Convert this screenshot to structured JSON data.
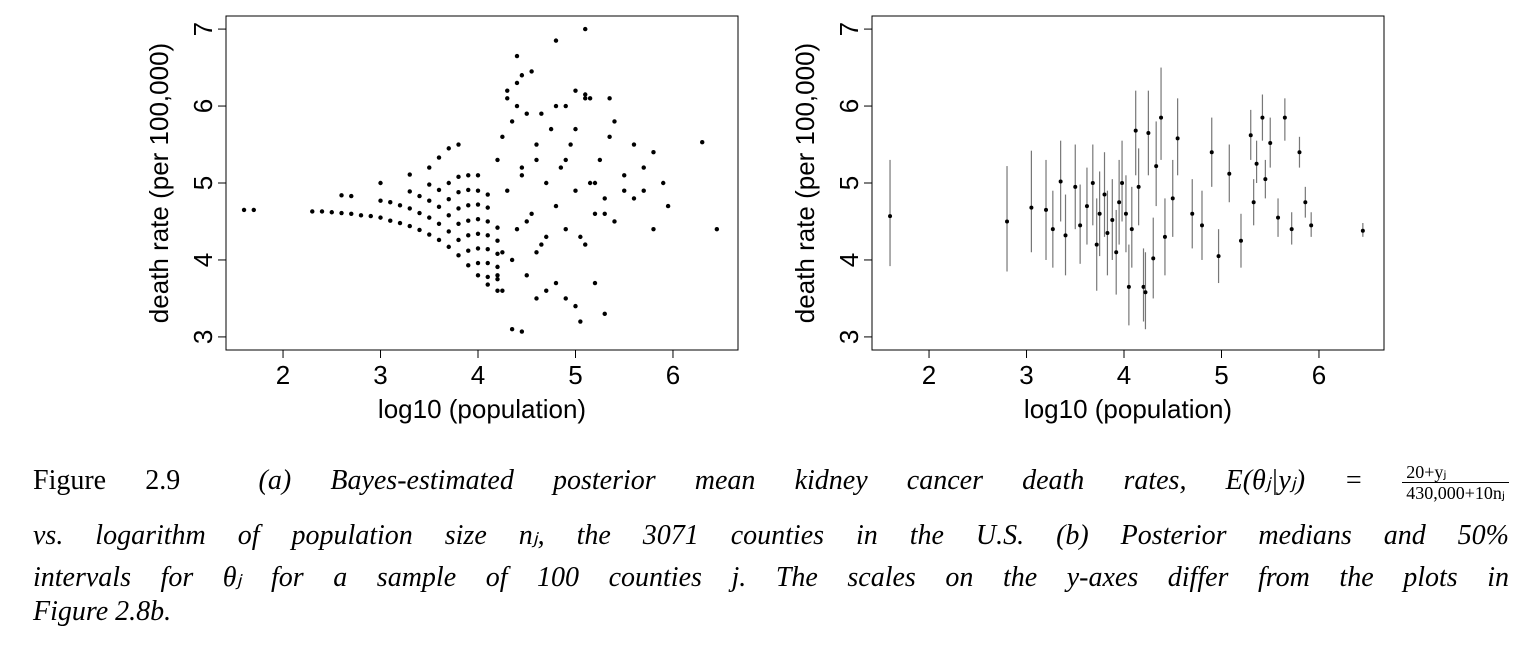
{
  "chart_data": [
    {
      "type": "scatter",
      "xlabel": "log10 (population)",
      "ylabel": "death rate (per 100,000)",
      "xlim": [
        1.415,
        6.667
      ],
      "ylim": [
        2.83,
        7.17
      ],
      "xticks": [
        2,
        3,
        4,
        5,
        6
      ],
      "yticks": [
        3,
        4,
        5,
        6,
        7
      ],
      "color": "#000000",
      "x": [
        1.6,
        1.7,
        2.3,
        2.4,
        2.5,
        2.6,
        2.7,
        2.8,
        2.9,
        3.0,
        3.1,
        3.2,
        3.3,
        3.4,
        3.5,
        3.6,
        3.7,
        3.8,
        3.9,
        4.0,
        4.1,
        4.2,
        2.6,
        2.7,
        3.0,
        3.1,
        3.2,
        3.3,
        3.4,
        3.5,
        3.6,
        3.7,
        3.8,
        3.9,
        4.0,
        4.1,
        4.2,
        3.0,
        3.3,
        3.4,
        3.5,
        3.6,
        3.7,
        3.8,
        3.9,
        4.0,
        4.1,
        4.2,
        3.3,
        3.5,
        3.6,
        3.7,
        3.8,
        3.9,
        4.0,
        4.1,
        4.2,
        3.5,
        3.7,
        3.8,
        3.9,
        4.0,
        4.1,
        4.2,
        3.6,
        3.8,
        3.9,
        4.0,
        4.1,
        4.2,
        3.7,
        3.9,
        4.0,
        4.1,
        4.25,
        3.8,
        4.0,
        4.1,
        4.2,
        4.2,
        4.25,
        4.3,
        4.35,
        4.4,
        4.45,
        4.5,
        4.55,
        4.6,
        4.65,
        4.7,
        4.75,
        4.8,
        4.85,
        4.9,
        4.95,
        5.0,
        5.05,
        5.1,
        5.15,
        5.2,
        5.25,
        5.3,
        5.35,
        5.4,
        5.5,
        5.6,
        5.7,
        5.8,
        5.9,
        5.95,
        4.3,
        4.35,
        4.4,
        4.45,
        4.5,
        4.55,
        4.6,
        4.65,
        4.7,
        4.8,
        4.9,
        5.0,
        5.1,
        5.2,
        5.3,
        5.4,
        5.6,
        5.8,
        4.25,
        4.3,
        4.4,
        4.5,
        4.6,
        4.7,
        4.8,
        4.9,
        5.0,
        5.1,
        5.2,
        5.3,
        5.5,
        5.7,
        4.4,
        4.45,
        4.8,
        5.1,
        5.0,
        5.15,
        5.35,
        6.3,
        6.45,
        4.35,
        4.45,
        4.6,
        4.9,
        5.05
      ],
      "y": [
        4.65,
        4.65,
        4.63,
        4.63,
        4.62,
        4.61,
        4.6,
        4.58,
        4.57,
        4.55,
        4.51,
        4.48,
        4.44,
        4.39,
        4.33,
        4.26,
        4.17,
        4.06,
        3.93,
        3.8,
        3.68,
        3.6,
        4.84,
        4.83,
        4.77,
        4.75,
        4.71,
        4.67,
        4.61,
        4.55,
        4.47,
        4.37,
        4.26,
        4.12,
        3.96,
        3.78,
        3.75,
        5.0,
        4.89,
        4.83,
        4.77,
        4.69,
        4.58,
        4.47,
        4.32,
        4.15,
        3.96,
        3.8,
        5.11,
        4.98,
        4.91,
        4.79,
        4.67,
        4.51,
        4.34,
        4.14,
        3.91,
        5.2,
        5.0,
        4.88,
        4.71,
        4.53,
        4.32,
        4.08,
        5.33,
        5.08,
        4.91,
        4.72,
        4.5,
        4.25,
        5.45,
        5.1,
        4.9,
        4.68,
        4.1,
        5.5,
        5.1,
        4.85,
        4.42,
        5.3,
        5.6,
        4.9,
        5.8,
        4.4,
        5.1,
        5.9,
        4.6,
        5.3,
        4.2,
        5.0,
        5.7,
        4.7,
        5.2,
        4.4,
        5.5,
        4.9,
        4.3,
        6.1,
        5.0,
        4.6,
        5.3,
        4.8,
        5.6,
        4.5,
        5.1,
        5.5,
        4.9,
        5.4,
        5.0,
        4.7,
        6.2,
        4.0,
        6.0,
        5.2,
        3.8,
        6.45,
        4.1,
        5.9,
        3.6,
        3.7,
        6.0,
        3.4,
        6.15,
        3.7,
        3.3,
        5.8,
        4.8,
        4.4,
        3.6,
        6.1,
        6.3,
        4.5,
        5.5,
        4.3,
        6.0,
        5.3,
        5.7,
        4.2,
        5.0,
        4.6,
        4.9,
        5.2,
        6.65,
        6.4,
        6.85,
        7.0,
        6.2,
        6.1,
        6.1,
        5.53,
        4.4,
        3.1,
        3.07,
        3.5,
        3.5,
        3.2
      ]
    },
    {
      "type": "errorbar",
      "xlabel": "log10 (population)",
      "ylabel": "death rate (per 100,000)",
      "xlim": [
        1.415,
        6.667
      ],
      "ylim": [
        2.83,
        7.17
      ],
      "xticks": [
        2,
        3,
        4,
        5,
        6
      ],
      "yticks": [
        3,
        4,
        5,
        6,
        7
      ],
      "color": "#000000",
      "bar_color": "#777777",
      "x": [
        1.6,
        2.8,
        3.05,
        3.2,
        3.27,
        3.35,
        3.4,
        3.5,
        3.55,
        3.62,
        3.68,
        3.72,
        3.75,
        3.8,
        3.83,
        3.88,
        3.92,
        3.95,
        3.98,
        4.02,
        4.05,
        4.08,
        4.12,
        4.15,
        4.2,
        4.22,
        4.25,
        4.3,
        4.33,
        4.38,
        4.42,
        4.5,
        4.55,
        4.7,
        4.8,
        4.9,
        4.97,
        5.08,
        5.2,
        5.3,
        5.33,
        5.36,
        5.42,
        5.45,
        5.5,
        5.58,
        5.65,
        5.72,
        5.8,
        5.86,
        5.92,
        6.45
      ],
      "y": [
        4.57,
        4.5,
        4.68,
        4.65,
        4.4,
        5.02,
        4.32,
        4.95,
        4.45,
        4.7,
        5.0,
        4.2,
        4.6,
        4.85,
        4.35,
        4.52,
        4.1,
        4.75,
        5.0,
        4.6,
        3.65,
        4.4,
        5.68,
        4.95,
        3.65,
        3.58,
        5.65,
        4.02,
        5.22,
        5.85,
        4.3,
        4.8,
        5.58,
        4.6,
        4.45,
        5.4,
        4.05,
        5.12,
        4.25,
        5.62,
        4.75,
        5.25,
        5.85,
        5.05,
        5.52,
        4.55,
        5.85,
        4.4,
        5.4,
        4.75,
        4.45,
        4.38
      ],
      "lower": [
        3.92,
        3.85,
        4.1,
        4.0,
        3.9,
        4.5,
        3.8,
        4.4,
        3.95,
        4.2,
        4.45,
        3.6,
        4.05,
        4.3,
        3.8,
        4.0,
        3.55,
        4.2,
        4.5,
        4.1,
        3.15,
        3.9,
        5.1,
        4.45,
        3.2,
        3.1,
        5.1,
        3.5,
        4.7,
        5.3,
        3.8,
        4.3,
        5.1,
        4.15,
        4.0,
        4.95,
        3.7,
        4.75,
        3.9,
        5.3,
        4.45,
        5.0,
        5.55,
        4.8,
        5.2,
        4.3,
        5.55,
        4.2,
        5.2,
        4.55,
        4.3,
        4.3
      ],
      "upper": [
        5.3,
        5.22,
        5.42,
        5.3,
        4.9,
        5.55,
        4.85,
        5.5,
        4.98,
        5.2,
        5.5,
        4.8,
        5.15,
        5.4,
        4.9,
        5.05,
        4.65,
        5.3,
        5.55,
        5.1,
        4.2,
        4.95,
        6.2,
        5.45,
        4.15,
        4.1,
        6.2,
        4.55,
        5.8,
        6.5,
        4.8,
        5.3,
        6.1,
        5.05,
        4.9,
        5.85,
        4.4,
        5.5,
        4.6,
        5.95,
        5.05,
        5.55,
        6.15,
        5.3,
        5.85,
        4.8,
        6.1,
        4.62,
        5.6,
        4.95,
        4.62,
        4.48
      ]
    }
  ],
  "caption": {
    "label": "Figure 2.9",
    "line1": "(a) Bayes-estimated posterior mean kidney cancer death rates, E(θⱼ|yⱼ) =",
    "numerator": "20+yⱼ",
    "denominator": "430,000+10nⱼ",
    "lines": [
      "vs. logarithm of population size nⱼ, the 3071 counties in the U.S.  (b) Posterior medians and 50%",
      "intervals for θⱼ for a sample of 100 counties j.  The scales on the y-axes differ from the plots in",
      "Figure 2.8b."
    ]
  }
}
